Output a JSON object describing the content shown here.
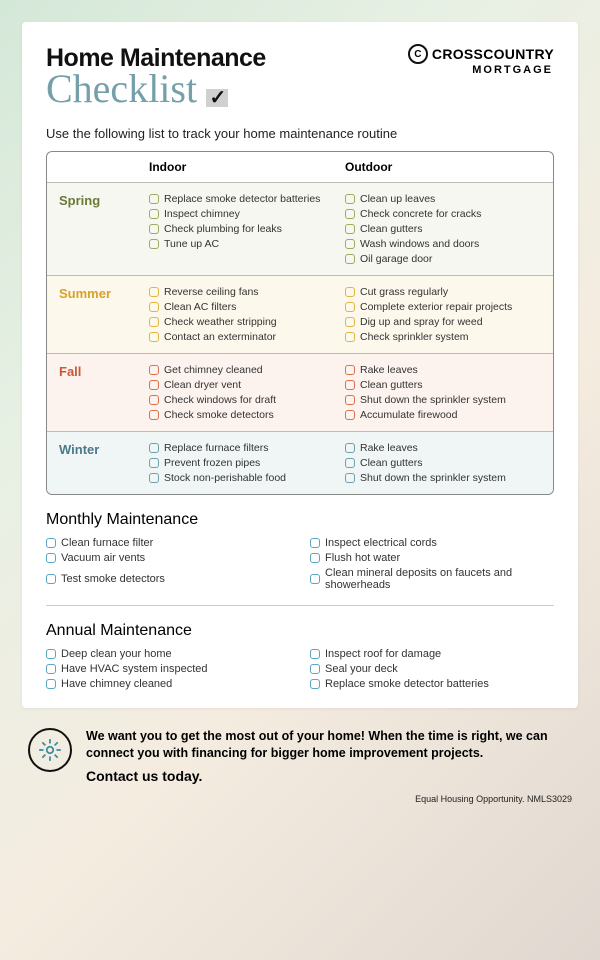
{
  "header": {
    "title_main": "Home Maintenance",
    "title_script": "Checklist",
    "brand_line1": "CROSSCOUNTRY",
    "brand_line2": "MORTGAGE"
  },
  "intro": "Use the following list to track your home maintenance routine",
  "columns": {
    "col0": "",
    "col1": "Indoor",
    "col2": "Outdoor"
  },
  "seasons": [
    {
      "name": "Spring",
      "color": "#6a7a38",
      "bg": "#f6f7f0",
      "cb": "#9aad5e",
      "indoor": [
        "Replace smoke detector batteries",
        "Inspect chimney",
        "Check plumbing for leaks",
        "Tune up AC"
      ],
      "outdoor": [
        "Clean up leaves",
        "Check concrete for cracks",
        "Clean gutters",
        "Wash windows and doors",
        "Oil garage door"
      ]
    },
    {
      "name": "Summer",
      "color": "#d6a22a",
      "bg": "#fdf8ec",
      "cb": "#e2b646",
      "indoor": [
        "Reverse ceiling fans",
        "Clean AC filters",
        "Check weather stripping",
        "Contact an exterminator"
      ],
      "outdoor": [
        "Cut grass regularly",
        "Complete exterior repair projects",
        "Dig up and spray for weed",
        "Check sprinkler system"
      ]
    },
    {
      "name": "Fall",
      "color": "#c8583a",
      "bg": "#fcf2ee",
      "cb": "#d9724f",
      "indoor": [
        "Get chimney cleaned",
        "Clean dryer vent",
        "Check windows for draft",
        "Check smoke detectors"
      ],
      "outdoor": [
        "Rake leaves",
        "Clean gutters",
        "Shut down the sprinkler system",
        "Accumulate firewood"
      ]
    },
    {
      "name": "Winter",
      "color": "#4a7a8a",
      "bg": "#f0f5f6",
      "cb": "#6fa0ae",
      "indoor": [
        "Replace furnace filters",
        "Prevent frozen pipes",
        "Stock non-perishable food"
      ],
      "outdoor": [
        "Rake leaves",
        "Clean gutters",
        "Shut down the sprinkler system"
      ]
    }
  ],
  "monthly": {
    "title": "Monthly Maintenance",
    "left": [
      "Clean furnace filter",
      "Vacuum air vents",
      "Test smoke detectors"
    ],
    "right": [
      "Inspect electrical cords",
      "Flush hot water",
      "Clean mineral deposits on faucets and showerheads"
    ]
  },
  "annual": {
    "title": "Annual Maintenance",
    "left": [
      "Deep clean your home",
      "Have HVAC system inspected",
      "Have chimney cleaned"
    ],
    "right": [
      "Inspect roof for damage",
      "Seal your deck",
      "Replace smoke detector batteries"
    ]
  },
  "footer": {
    "text": "We want you to get the most out of your home! When the time is right, we can connect you with financing for bigger home improvement projects.",
    "cta": "Contact us today.",
    "fineprint": "Equal Housing Opportunity. NMLS3029"
  }
}
